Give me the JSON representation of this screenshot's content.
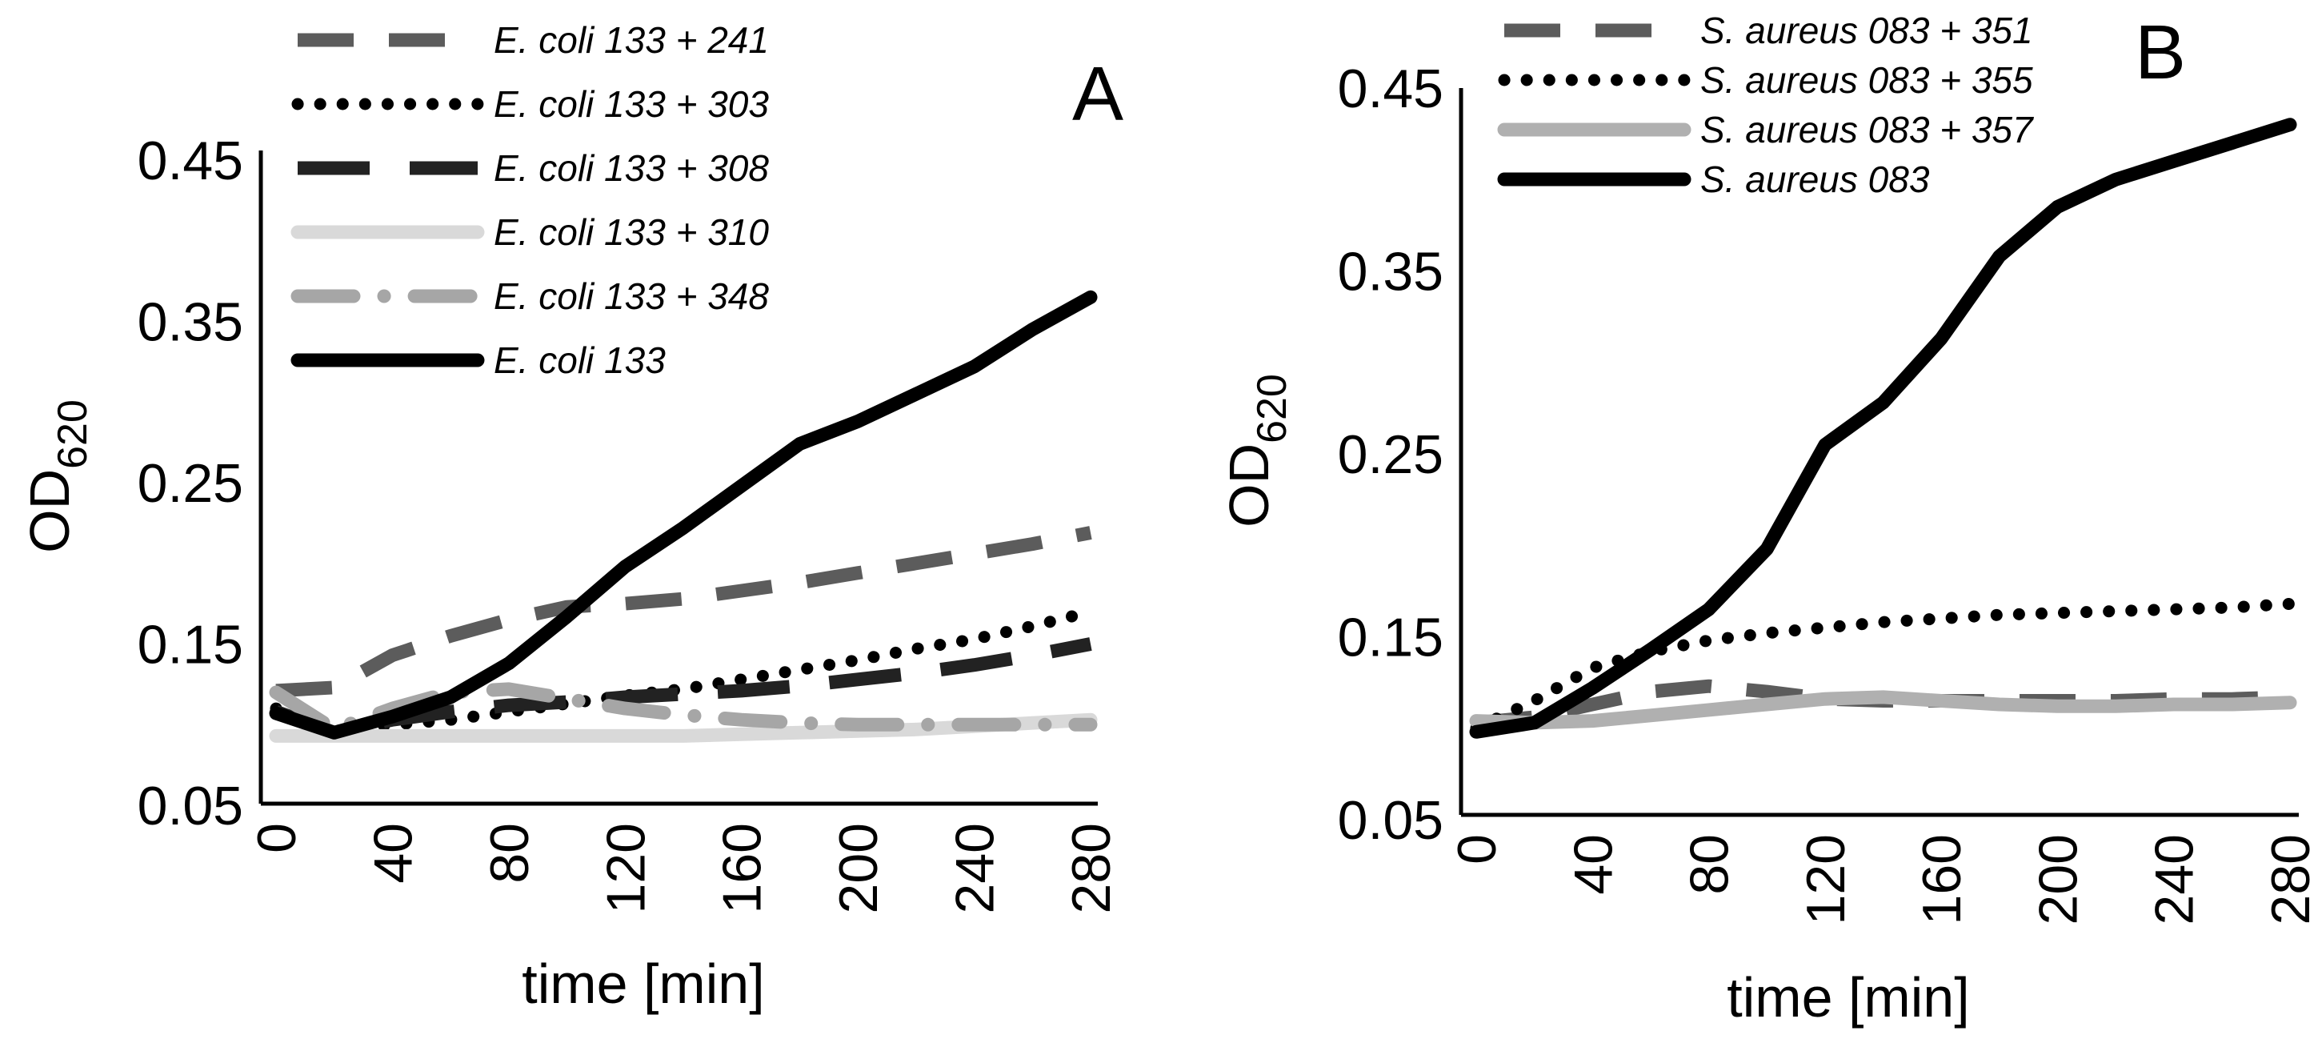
{
  "figure": {
    "background": "#ffffff",
    "panels": [
      {
        "letter": "A",
        "y_label_main": "OD",
        "y_label_sub": "620",
        "x_label": "time [min]"
      },
      {
        "letter": "B",
        "y_label_main": "OD",
        "y_label_sub": "620",
        "x_label": "time [min]"
      }
    ]
  },
  "chart_data": [
    {
      "type": "line",
      "panel": "A",
      "xlabel": "time [min]",
      "ylabel": "OD620",
      "xlim": [
        0,
        280
      ],
      "ylim": [
        0.05,
        0.45
      ],
      "xticks": [
        0,
        40,
        80,
        120,
        160,
        200,
        240,
        280
      ],
      "yticks": [
        0.05,
        0.15,
        0.25,
        0.35,
        0.45
      ],
      "ytick_labels": [
        "0.05",
        "0.15",
        "0.25",
        "0.35",
        "0.45"
      ],
      "grid": false,
      "legend": "top-left",
      "x": [
        0,
        20,
        40,
        60,
        80,
        100,
        120,
        140,
        160,
        180,
        200,
        220,
        240,
        260,
        280
      ],
      "series": [
        {
          "name": "E. coli 133 + 241",
          "style": "dash",
          "color": "#5c5c5c",
          "values": [
            0.121,
            0.123,
            0.143,
            0.155,
            0.165,
            0.173,
            0.175,
            0.178,
            0.183,
            0.188,
            0.194,
            0.2,
            0.206,
            0.212,
            0.219
          ]
        },
        {
          "name": "E. coli 133 + 303",
          "style": "dot",
          "color": "#000000",
          "values": [
            0.11,
            0.096,
            0.1,
            0.103,
            0.108,
            0.113,
            0.118,
            0.122,
            0.128,
            0.134,
            0.14,
            0.147,
            0.153,
            0.161,
            0.17
          ]
        },
        {
          "name": "E. coli 133 + 308",
          "style": "longdash",
          "color": "#222222",
          "values": [
            0.108,
            0.095,
            0.103,
            0.108,
            0.112,
            0.114,
            0.117,
            0.119,
            0.121,
            0.124,
            0.128,
            0.132,
            0.137,
            0.143,
            0.15
          ]
        },
        {
          "name": "E. coli 133 + 310",
          "style": "solid",
          "color": "#d9d9d9",
          "values": [
            0.093,
            0.093,
            0.093,
            0.093,
            0.093,
            0.093,
            0.093,
            0.093,
            0.094,
            0.095,
            0.096,
            0.097,
            0.099,
            0.101,
            0.103
          ]
        },
        {
          "name": "E. coli 133 + 348",
          "style": "dashdot",
          "color": "#a6a6a6",
          "values": [
            0.12,
            0.097,
            0.11,
            0.12,
            0.122,
            0.116,
            0.11,
            0.106,
            0.103,
            0.101,
            0.1,
            0.1,
            0.1,
            0.1,
            0.1
          ]
        },
        {
          "name": "E. coli 133",
          "style": "solid",
          "color": "#000000",
          "values": [
            0.107,
            0.095,
            0.105,
            0.117,
            0.138,
            0.167,
            0.198,
            0.222,
            0.248,
            0.274,
            0.288,
            0.305,
            0.322,
            0.345,
            0.365
          ]
        }
      ]
    },
    {
      "type": "line",
      "panel": "B",
      "xlabel": "time [min]",
      "ylabel": "OD620",
      "xlim": [
        0,
        280
      ],
      "ylim": [
        0.05,
        0.45
      ],
      "xticks": [
        0,
        40,
        80,
        120,
        160,
        200,
        240,
        280
      ],
      "yticks": [
        0.05,
        0.15,
        0.25,
        0.35,
        0.45
      ],
      "ytick_labels": [
        "0.05",
        "0.15",
        "0.25",
        "0.35",
        "0.45"
      ],
      "grid": false,
      "legend": "top-left",
      "x": [
        0,
        20,
        40,
        60,
        80,
        100,
        120,
        140,
        160,
        180,
        200,
        220,
        240,
        260,
        280
      ],
      "series": [
        {
          "name": "S. aureus 083 + 351",
          "style": "dash",
          "color": "#5c5c5c",
          "values": [
            0.103,
            0.106,
            0.113,
            0.12,
            0.123,
            0.12,
            0.116,
            0.115,
            0.115,
            0.115,
            0.115,
            0.115,
            0.116,
            0.116,
            0.117
          ]
        },
        {
          "name": "S. aureus 083 + 355",
          "style": "dot",
          "color": "#000000",
          "values": [
            0.1,
            0.115,
            0.133,
            0.142,
            0.148,
            0.152,
            0.155,
            0.158,
            0.16,
            0.162,
            0.163,
            0.164,
            0.165,
            0.166,
            0.168
          ]
        },
        {
          "name": "S. aureus 083 + 357",
          "style": "solid",
          "color": "#b0b0b0",
          "values": [
            0.104,
            0.103,
            0.104,
            0.107,
            0.11,
            0.113,
            0.116,
            0.117,
            0.115,
            0.113,
            0.112,
            0.112,
            0.113,
            0.113,
            0.114
          ]
        },
        {
          "name": "S. aureus 083",
          "style": "solid",
          "color": "#000000",
          "values": [
            0.098,
            0.103,
            0.122,
            0.143,
            0.165,
            0.198,
            0.255,
            0.278,
            0.313,
            0.358,
            0.385,
            0.4,
            0.41,
            0.42,
            0.43
          ]
        }
      ]
    }
  ]
}
